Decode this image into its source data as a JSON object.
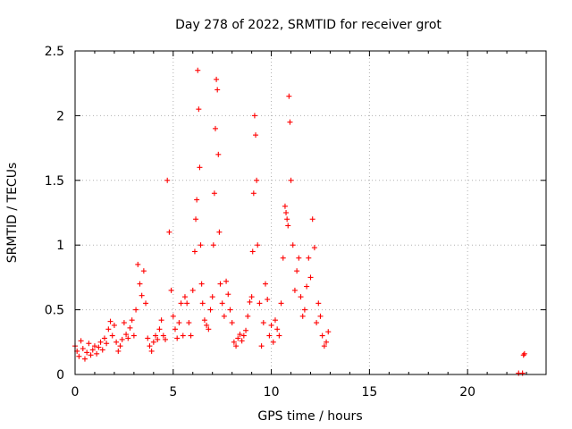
{
  "chart_data": {
    "type": "scatter",
    "title": "Day 278 of 2022, SRMTID for receiver grot",
    "xlabel": "GPS time / hours",
    "ylabel": "SRMTID / TECUs",
    "xlim": [
      0,
      24
    ],
    "ylim": [
      0,
      2.5
    ],
    "x_ticks": [
      0,
      5,
      10,
      15,
      20
    ],
    "x_tick_labels": [
      "0",
      "5",
      "10",
      "15",
      "20"
    ],
    "y_ticks": [
      0,
      0.5,
      1,
      1.5,
      2,
      2.5
    ],
    "y_tick_labels": [
      "0",
      "0.5",
      "1",
      "1.5",
      "2",
      "2.5"
    ],
    "grid": true,
    "marker": "plus",
    "series": [
      {
        "name": "SRMTID",
        "color": "#ff0000",
        "x": [
          0.0,
          0.1,
          0.2,
          0.3,
          0.4,
          0.5,
          0.6,
          0.7,
          0.8,
          0.9,
          1.0,
          1.1,
          1.2,
          1.3,
          1.4,
          1.5,
          1.6,
          1.7,
          1.8,
          1.9,
          2.0,
          2.1,
          2.2,
          2.3,
          2.4,
          2.5,
          2.6,
          2.7,
          2.8,
          2.9,
          3.0,
          3.1,
          3.2,
          3.3,
          3.4,
          3.5,
          3.6,
          3.7,
          3.8,
          3.9,
          4.0,
          4.1,
          4.2,
          4.3,
          4.4,
          4.5,
          4.6,
          4.7,
          4.8,
          4.9,
          5.0,
          5.1,
          5.2,
          5.3,
          5.4,
          5.5,
          5.6,
          5.7,
          5.8,
          5.9,
          6.0,
          6.1,
          6.15,
          6.2,
          6.25,
          6.3,
          6.35,
          6.4,
          6.45,
          6.5,
          6.6,
          6.7,
          6.8,
          6.9,
          7.0,
          7.05,
          7.1,
          7.15,
          7.2,
          7.25,
          7.3,
          7.35,
          7.4,
          7.5,
          7.6,
          7.7,
          7.8,
          7.9,
          8.0,
          8.1,
          8.2,
          8.3,
          8.4,
          8.5,
          8.6,
          8.7,
          8.8,
          8.9,
          9.0,
          9.05,
          9.1,
          9.15,
          9.2,
          9.25,
          9.3,
          9.4,
          9.5,
          9.6,
          9.7,
          9.8,
          9.9,
          10.0,
          10.1,
          10.2,
          10.3,
          10.4,
          10.5,
          10.6,
          10.7,
          10.75,
          10.8,
          10.85,
          10.9,
          10.95,
          11.0,
          11.1,
          11.2,
          11.3,
          11.4,
          11.5,
          11.6,
          11.7,
          11.8,
          11.9,
          12.0,
          12.1,
          12.2,
          12.3,
          12.4,
          12.5,
          12.6,
          12.7,
          12.8,
          12.9,
          22.6,
          22.8,
          22.85,
          22.9
        ],
        "y": [
          0.22,
          0.18,
          0.14,
          0.26,
          0.2,
          0.12,
          0.17,
          0.24,
          0.15,
          0.19,
          0.22,
          0.16,
          0.21,
          0.25,
          0.19,
          0.28,
          0.24,
          0.35,
          0.41,
          0.3,
          0.38,
          0.25,
          0.18,
          0.22,
          0.27,
          0.4,
          0.31,
          0.28,
          0.36,
          0.42,
          0.3,
          0.5,
          0.85,
          0.7,
          0.61,
          0.8,
          0.55,
          0.28,
          0.22,
          0.18,
          0.25,
          0.3,
          0.27,
          0.35,
          0.42,
          0.3,
          0.27,
          1.5,
          1.1,
          0.65,
          0.45,
          0.35,
          0.28,
          0.4,
          0.55,
          0.3,
          0.6,
          0.55,
          0.4,
          0.3,
          0.65,
          0.95,
          1.2,
          1.35,
          2.35,
          2.05,
          1.6,
          1.0,
          0.7,
          0.55,
          0.42,
          0.38,
          0.35,
          0.5,
          0.6,
          1.0,
          1.4,
          1.9,
          2.28,
          2.2,
          1.7,
          1.1,
          0.7,
          0.55,
          0.45,
          0.72,
          0.62,
          0.5,
          0.4,
          0.25,
          0.22,
          0.28,
          0.31,
          0.26,
          0.3,
          0.34,
          0.45,
          0.56,
          0.6,
          0.95,
          1.4,
          2.0,
          1.85,
          1.5,
          1.0,
          0.55,
          0.22,
          0.4,
          0.7,
          0.58,
          0.3,
          0.38,
          0.25,
          0.42,
          0.35,
          0.3,
          0.55,
          0.9,
          1.3,
          1.25,
          1.2,
          1.15,
          2.15,
          1.95,
          1.5,
          1.0,
          0.65,
          0.8,
          0.9,
          0.6,
          0.45,
          0.5,
          0.68,
          0.9,
          0.75,
          1.2,
          0.98,
          0.4,
          0.55,
          0.45,
          0.3,
          0.22,
          0.25,
          0.33,
          0.01,
          0.01,
          0.15,
          0.16
        ]
      }
    ]
  }
}
